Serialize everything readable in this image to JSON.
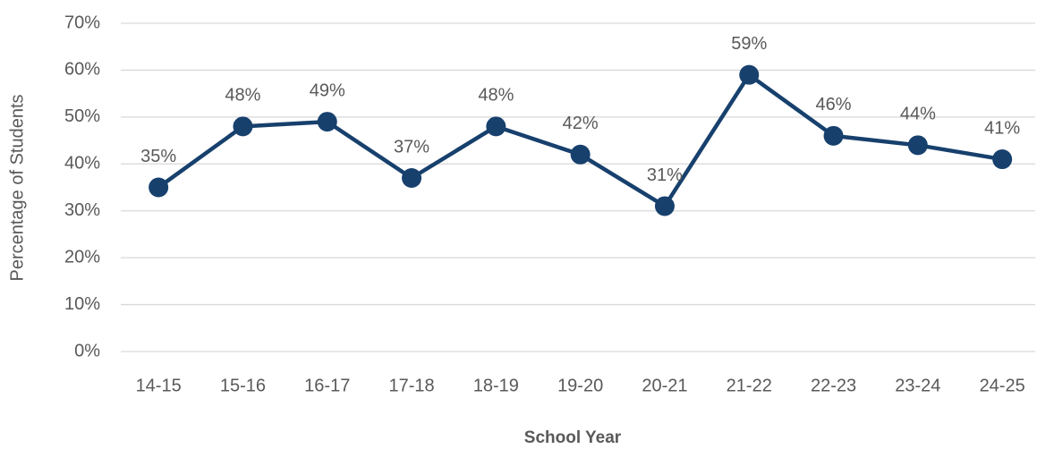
{
  "chart_data": {
    "type": "line",
    "x_label": "School Year",
    "y_label": "Percentage of Students",
    "categories": [
      "14-15",
      "15-16",
      "16-17",
      "17-18",
      "18-19",
      "19-20",
      "20-21",
      "21-22",
      "22-23",
      "23-24",
      "24-25"
    ],
    "series": [
      {
        "name": "Percentage of Students",
        "color": "#17406d",
        "values": [
          35,
          48,
          49,
          37,
          48,
          42,
          31,
          59,
          46,
          44,
          41
        ],
        "value_labels": [
          "35%",
          "48%",
          "49%",
          "37%",
          "48%",
          "42%",
          "31%",
          "59%",
          "46%",
          "44%",
          "41%"
        ]
      }
    ],
    "ylim": [
      0,
      70
    ],
    "yticks": [
      {
        "value": 0,
        "label": "0%"
      },
      {
        "value": 10,
        "label": "10%"
      },
      {
        "value": 20,
        "label": "20%"
      },
      {
        "value": 30,
        "label": "30%"
      },
      {
        "value": 40,
        "label": "40%"
      },
      {
        "value": 50,
        "label": "50%"
      },
      {
        "value": 60,
        "label": "60%"
      },
      {
        "value": 70,
        "label": "70%"
      }
    ],
    "grid": true
  }
}
